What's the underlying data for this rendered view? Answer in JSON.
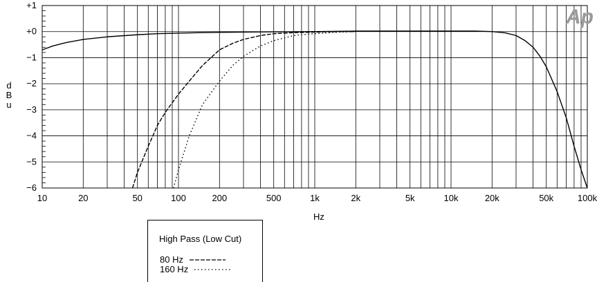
{
  "chart_data": {
    "type": "line",
    "title": "",
    "xlabel": "Hz",
    "ylabel": "dBu",
    "x_scale": "log",
    "xlim": [
      10,
      100000
    ],
    "ylim": [
      -6,
      1
    ],
    "grid": true,
    "x_ticks": [
      {
        "value": 10,
        "label": "10"
      },
      {
        "value": 20,
        "label": "20"
      },
      {
        "value": 50,
        "label": "50"
      },
      {
        "value": 100,
        "label": "100"
      },
      {
        "value": 200,
        "label": "200"
      },
      {
        "value": 500,
        "label": "500"
      },
      {
        "value": 1000,
        "label": "1k"
      },
      {
        "value": 2000,
        "label": "2k"
      },
      {
        "value": 5000,
        "label": "5k"
      },
      {
        "value": 10000,
        "label": "10k"
      },
      {
        "value": 20000,
        "label": "20k"
      },
      {
        "value": 50000,
        "label": "50k"
      },
      {
        "value": 100000,
        "label": "100k"
      }
    ],
    "y_ticks": [
      {
        "value": 1,
        "label": "+1"
      },
      {
        "value": 0,
        "label": "+0"
      },
      {
        "value": -1,
        "label": "−1"
      },
      {
        "value": -2,
        "label": "−2"
      },
      {
        "value": -3,
        "label": "−3"
      },
      {
        "value": -4,
        "label": "−4"
      },
      {
        "value": -5,
        "label": "−5"
      },
      {
        "value": -6,
        "label": "−6"
      }
    ],
    "series": [
      {
        "name": "",
        "style": "solid",
        "x": [
          10,
          12,
          15,
          20,
          30,
          50,
          70,
          100,
          150,
          200,
          300,
          500,
          700,
          1000,
          2000,
          5000,
          10000,
          15000,
          20000,
          25000,
          30000,
          35000,
          40000,
          45000,
          50000,
          60000,
          70000,
          80000,
          90000,
          100000
        ],
        "y": [
          -0.7,
          -0.55,
          -0.42,
          -0.3,
          -0.2,
          -0.12,
          -0.08,
          -0.06,
          -0.04,
          -0.03,
          -0.02,
          -0.01,
          -0.005,
          0,
          0.02,
          0.02,
          0.02,
          0.02,
          0,
          -0.05,
          -0.15,
          -0.35,
          -0.6,
          -0.95,
          -1.35,
          -2.3,
          -3.3,
          -4.4,
          -5.3,
          -6
        ]
      },
      {
        "name": "80 Hz",
        "style": "dashed",
        "x": [
          46,
          50,
          60,
          70,
          80,
          100,
          120,
          150,
          200,
          250,
          300,
          400,
          500,
          700,
          1000,
          1500,
          2000
        ],
        "y": [
          -6,
          -5.4,
          -4.4,
          -3.6,
          -3.1,
          -2.4,
          -1.9,
          -1.3,
          -0.7,
          -0.45,
          -0.3,
          -0.15,
          -0.08,
          -0.04,
          -0.02,
          0,
          0
        ]
      },
      {
        "name": "160 Hz",
        "style": "dotted",
        "x": [
          92,
          100,
          120,
          150,
          200,
          250,
          300,
          400,
          500,
          700,
          1000,
          1500,
          2000
        ],
        "y": [
          -6,
          -5.3,
          -4.0,
          -2.8,
          -1.9,
          -1.3,
          -0.95,
          -0.55,
          -0.35,
          -0.15,
          -0.08,
          -0.02,
          0
        ]
      }
    ],
    "legend": {
      "placement": "bottom-left",
      "title": "High Pass (Low Cut)",
      "entries": [
        {
          "label": "80 Hz",
          "style": "dashed"
        },
        {
          "label": "160 Hz",
          "style": "dotted"
        }
      ]
    },
    "colors": {
      "line": "#000000",
      "grid": "#000000",
      "logo": "#9a9a9a"
    }
  },
  "logo": {
    "text": "Ap"
  }
}
